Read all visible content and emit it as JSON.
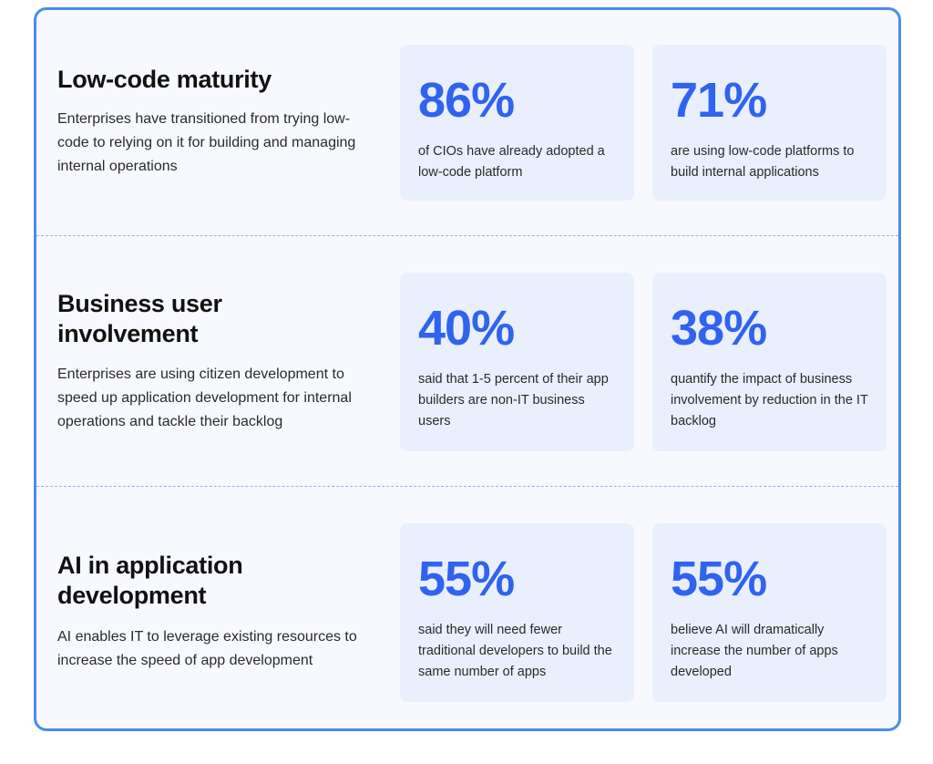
{
  "sections": [
    {
      "title": "Low-code maturity",
      "description": "Enterprises have transitioned from trying low-code to relying on it for building and managing internal operations",
      "stats": [
        {
          "value": "86%",
          "text": "of CIOs have already adopted a low-code platform"
        },
        {
          "value": "71%",
          "text": "are using low-code platforms to build internal applications"
        }
      ]
    },
    {
      "title": "Business user involvement",
      "description": "Enterprises are using citizen development to speed up application development for internal operations and tackle their backlog",
      "stats": [
        {
          "value": "40%",
          "text": "said that 1-5 percent of their app builders are non-IT business users"
        },
        {
          "value": "38%",
          "text": "quantify the impact of business involvement by reduction in the IT backlog"
        }
      ]
    },
    {
      "title": "AI in application development",
      "description": "AI enables IT to leverage existing resources to increase the speed of app development",
      "stats": [
        {
          "value": "55%",
          "text": "said they will need fewer traditional developers to build the same number of apps"
        },
        {
          "value": "55%",
          "text": "believe AI will dramatically increase the number of apps developed"
        }
      ]
    }
  ],
  "colors": {
    "border": "#4a8de8",
    "background": "#f7f9fe",
    "stat_card": "#e9effd",
    "stat_value": "#2f63f0",
    "title": "#111111"
  }
}
